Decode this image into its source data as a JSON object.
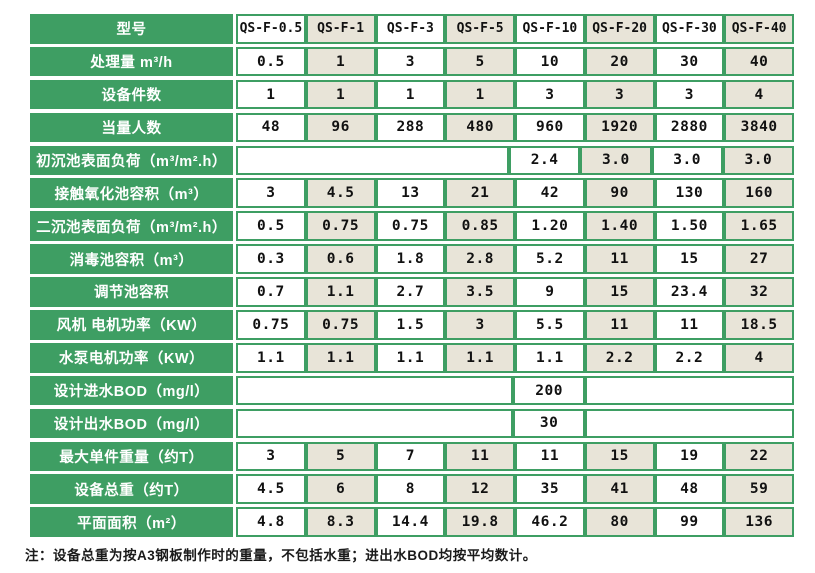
{
  "colors": {
    "green": "#3E9E63",
    "beige": "#E8E4D8",
    "cell_white": "#FFFFFF",
    "value_text": "#111111"
  },
  "table": {
    "header": {
      "label": "型号",
      "models": [
        "QS-F-0.5",
        "QS-F-1",
        "QS-F-3",
        "QS-F-5",
        "QS-F-10",
        "QS-F-20",
        "QS-F-30",
        "QS-F-40"
      ]
    },
    "rows": [
      {
        "label": "处理量 m³/h",
        "cells": [
          "0.5",
          "1",
          "3",
          "5",
          "10",
          "20",
          "30",
          "40"
        ]
      },
      {
        "label": "设备件数",
        "cells": [
          "1",
          "1",
          "1",
          "1",
          "3",
          "3",
          "3",
          "4"
        ]
      },
      {
        "label": "当量人数",
        "cells": [
          "48",
          "96",
          "288",
          "480",
          "960",
          "1920",
          "2880",
          "3840"
        ]
      },
      {
        "label": "初沉池表面负荷（m³/m².h）",
        "cells": [
          {
            "t": "",
            "span": 4,
            "blank": true
          },
          "2.4",
          "3.0",
          "3.0",
          "3.0"
        ]
      },
      {
        "label": "接触氧化池容积（m³）",
        "cells": [
          "3",
          "4.5",
          "13",
          "21",
          "42",
          "90",
          "130",
          "160"
        ]
      },
      {
        "label": "二沉池表面负荷（m³/m².h）",
        "cells": [
          "0.5",
          "0.75",
          "0.75",
          "0.85",
          "1.20",
          "1.40",
          "1.50",
          "1.65"
        ]
      },
      {
        "label": "消毒池容积（m³）",
        "cells": [
          "0.3",
          "0.6",
          "1.8",
          "2.8",
          "5.2",
          "11",
          "15",
          "27"
        ]
      },
      {
        "label": "调节池容积",
        "cells": [
          "0.7",
          "1.1",
          "2.7",
          "3.5",
          "9",
          "15",
          "23.4",
          "32"
        ]
      },
      {
        "label": "风机 电机功率（KW）",
        "cells": [
          "0.75",
          "0.75",
          "1.5",
          "3",
          "5.5",
          "11",
          "11",
          "18.5"
        ]
      },
      {
        "label": "水泵电机功率（KW）",
        "cells": [
          "1.1",
          "1.1",
          "1.1",
          "1.1",
          "1.1",
          "2.2",
          "2.2",
          "4"
        ]
      },
      {
        "label": "设计进水BOD（mg/l）",
        "cells": [
          {
            "t": "",
            "span": 4,
            "blank": true
          },
          "200",
          {
            "t": "",
            "span": 3,
            "blank": true
          }
        ]
      },
      {
        "label": "设计出水BOD（mg/l）",
        "cells": [
          {
            "t": "",
            "span": 4,
            "blank": true
          },
          "30",
          {
            "t": "",
            "span": 3,
            "blank": true
          }
        ]
      },
      {
        "label": "最大单件重量（约T）",
        "cells": [
          "3",
          "5",
          "7",
          "11",
          "11",
          "15",
          "19",
          "22"
        ]
      },
      {
        "label": "设备总重（约T）",
        "cells": [
          "4.5",
          "6",
          "8",
          "12",
          "35",
          "41",
          "48",
          "59"
        ]
      },
      {
        "label": "平面面积（m²）",
        "cells": [
          "4.8",
          "8.3",
          "14.4",
          "19.8",
          "46.2",
          "80",
          "99",
          "136"
        ]
      }
    ]
  },
  "page": {
    "note": "注：设备总重为按A3钢板制作时的重量，不包括水重；进出水BOD均按平均数计。"
  }
}
